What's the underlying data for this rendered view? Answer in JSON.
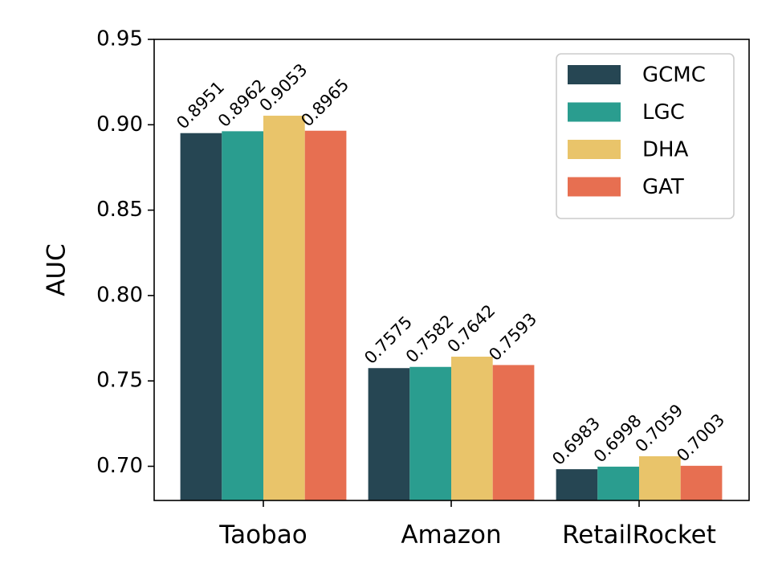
{
  "chart_data": {
    "type": "bar",
    "title": "",
    "xlabel": "",
    "ylabel": "AUC",
    "ylim": [
      0.68,
      0.95
    ],
    "yticks": [
      "0.70",
      "0.75",
      "0.80",
      "0.85",
      "0.90",
      "0.95"
    ],
    "grid": false,
    "legend_position": "top-right",
    "categories": [
      "Taobao",
      "Amazon",
      "RetailRocket"
    ],
    "series": [
      {
        "name": "GCMC",
        "color": "#264653",
        "values": [
          0.8951,
          0.7575,
          0.6983
        ],
        "labels": [
          "0.8951",
          "0.7575",
          "0.6983"
        ]
      },
      {
        "name": "LGC",
        "color": "#2a9d8f",
        "values": [
          0.8962,
          0.7582,
          0.6998
        ],
        "labels": [
          "0.8962",
          "0.7582",
          "0.6998"
        ]
      },
      {
        "name": "DHA",
        "color": "#e9c46a",
        "values": [
          0.9053,
          0.7642,
          0.7059
        ],
        "labels": [
          "0.9053",
          "0.7642",
          "0.7059"
        ]
      },
      {
        "name": "GAT",
        "color": "#e76f51",
        "values": [
          0.8965,
          0.7593,
          0.7003
        ],
        "labels": [
          "0.8965",
          "0.7593",
          "0.7003"
        ]
      }
    ]
  }
}
